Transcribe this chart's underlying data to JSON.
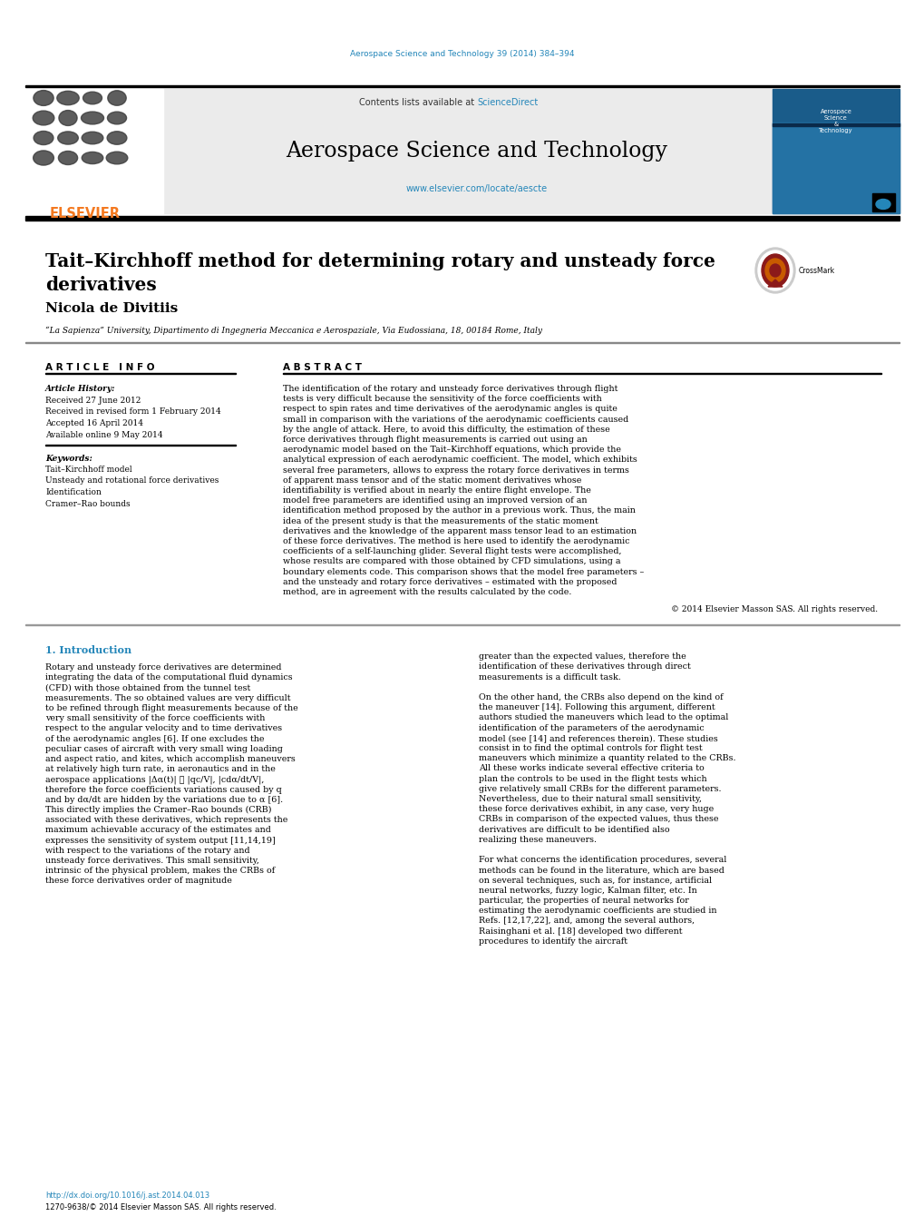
{
  "page_width": 10.2,
  "page_height": 13.51,
  "bg_color": "#ffffff",
  "top_journal_ref": "Aerospace Science and Technology 39 (2014) 384–394",
  "journal_ref_color": "#2486b9",
  "header_bg": "#e8e8e8",
  "journal_title": "Aerospace Science and Technology",
  "science_direct_color": "#2486b9",
  "website_text": "www.elsevier.com/locate/aescte",
  "website_color": "#2486b9",
  "elsevier_color": "#f47920",
  "article_title_line1": "Tait–Kirchhoff method for determining rotary and unsteady force",
  "article_title_line2": "derivatives",
  "author_name": "Nicola de Divitiis",
  "affiliation": "“La Sapienza” University, Dipartimento di Ingegneria Meccanica e Aerospaziale, Via Eudossiana, 18, 00184 Rome, Italy",
  "article_info_header": "A R T I C L E   I N F O",
  "abstract_header": "A B S T R A C T",
  "article_history_label": "Article History:",
  "history_items": [
    "Received 27 June 2012",
    "Received in revised form 1 February 2014",
    "Accepted 16 April 2014",
    "Available online 9 May 2014"
  ],
  "keywords_label": "Keywords:",
  "keywords_items": [
    "Tait–Kirchhoff model",
    "Unsteady and rotational force derivatives",
    "Identification",
    "Cramer–Rao bounds"
  ],
  "abstract_text": "The identification of the rotary and unsteady force derivatives through flight tests is very difficult because the sensitivity of the force coefficients with respect to spin rates and time derivatives of the aerodynamic angles is quite small in comparison with the variations of the aerodynamic coefficients caused by the angle of attack. Here, to avoid this difficulty, the estimation of these force derivatives through flight measurements is carried out using an aerodynamic model based on the Tait–Kirchhoff equations, which provide the analytical expression of each aerodynamic coefficient. The model, which exhibits several free parameters, allows to express the rotary force derivatives in terms of apparent mass tensor and of the static moment derivatives whose identifiability is verified about in nearly the entire flight envelope. The model free parameters are identified using an improved version of an identification method proposed by the author in a previous work. Thus, the main idea of the present study is that the measurements of the static moment derivatives and the knowledge of the apparent mass tensor lead to an estimation of these force derivatives. The method is here used to identify the aerodynamic coefficients of a self-launching glider. Several flight tests were accomplished, whose results are compared with those obtained by CFD simulations, using a boundary elements code. This comparison shows that the model free parameters – and the unsteady and rotary force derivatives – estimated with the proposed method, are in agreement with the results calculated by the code.",
  "copyright_text": "© 2014 Elsevier Masson SAS. All rights reserved.",
  "section1_header": "1. Introduction",
  "section1_col1_indent": "     Rotary and unsteady force derivatives are determined integrating the data of the computational fluid dynamics (CFD) with those obtained from the tunnel test measurements. The so obtained values are very difficult to be refined through flight measurements because of the very small sensitivity of the force coefficients with respect to the angular velocity and to time derivatives of the aerodynamic angles [6]. If one excludes the peculiar cases of aircraft with very small wing loading and aspect ratio, and kites, which accomplish maneuvers at relatively high turn rate, in aeronautics and in the aerospace applications |Δα(t)| ≫ |qc/V|, |cdα/dt/V|, therefore the force coefficients variations caused by q and by dα/dt are hidden by the variations due to α [6]. This directly implies the Cramer–Rao bounds (CRB) associated with these derivatives, which represents the maximum achievable accuracy of the estimates and expresses the sensitivity of system output [11,14,19] with respect to the variations of the rotary and unsteady force derivatives. This small sensitivity, intrinsic of the physical problem, makes the CRBs of these force derivatives order of magnitude",
  "section1_col2": "greater than the expected values, therefore the identification of these derivatives through direct measurements is a difficult task.\n\n     On the other hand, the CRBs also depend on the kind of the maneuver [14]. Following this argument, different authors studied the maneuvers which lead to the optimal identification of the parameters of the aerodynamic model (see [14] and references therein). These studies consist in to find the optimal controls for flight test maneuvers which minimize a quantity related to the CRBs. All these works indicate several effective criteria to plan the controls to be used in the flight tests which give relatively small CRBs for the different parameters. Nevertheless, due to their natural small sensitivity, these force derivatives exhibit, in any case, very huge CRBs in comparison of the expected values, thus these derivatives are difficult to be identified also realizing these maneuvers.\n\n     For what concerns the identification procedures, several methods can be found in the literature, which are based on several techniques, such as, for instance, artificial neural networks, fuzzy logic, Kalman filter, etc. In particular, the properties of neural networks for estimating the aerodynamic coefficients are studied in Refs. [12,17,22], and, among the several authors, Raisinghani et al. [18] developed two different procedures to identify the aircraft",
  "doi_text": "http://dx.doi.org/10.1016/j.ast.2014.04.013",
  "issn_text": "1270-9638/© 2014 Elsevier Masson SAS. All rights reserved.",
  "doi_color": "#2486b9",
  "cover_colors": [
    "#1a5c8a",
    "#2472a4",
    "#1a3a5c"
  ],
  "crossmark_colors": [
    "#c0392b",
    "#e07020",
    "#b03010"
  ]
}
